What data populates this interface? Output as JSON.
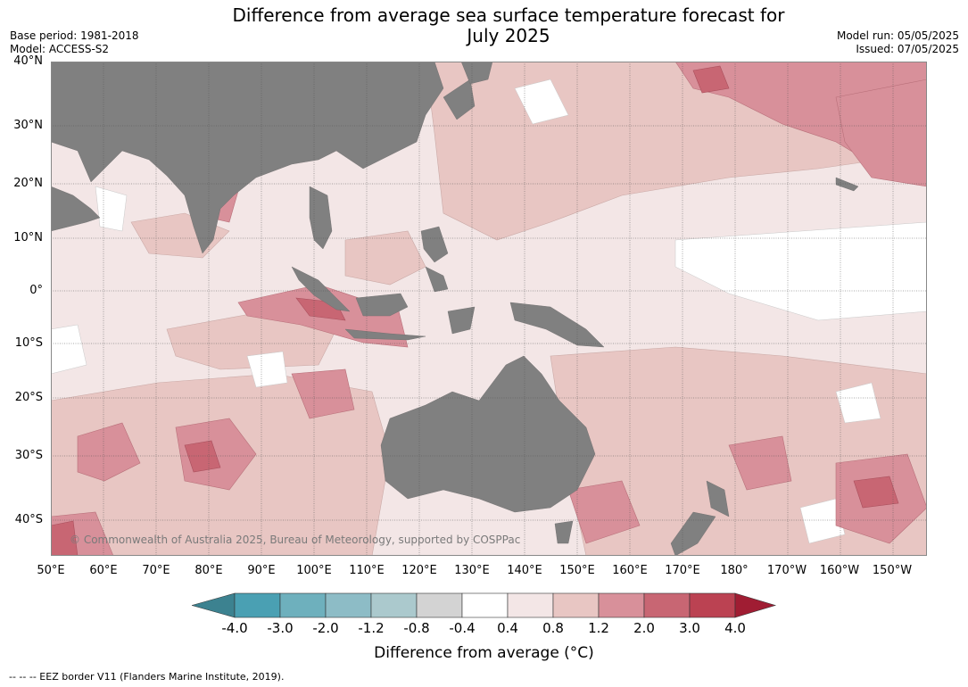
{
  "title_line1": "Difference from average sea surface temperature forecast for",
  "title_line2": "July 2025",
  "meta_left": [
    "Base period: 1981-2018",
    "Model: ACCESS-S2"
  ],
  "meta_right": [
    "Model run: 05/05/2025",
    "Issued: 07/05/2025"
  ],
  "lat_labels": [
    "40°N",
    "30°N",
    "20°N",
    "10°N",
    "0°",
    "10°S",
    "20°S",
    "30°S",
    "40°S"
  ],
  "lon_labels": [
    "50°E",
    "60°E",
    "70°E",
    "80°E",
    "90°E",
    "100°E",
    "110°E",
    "120°E",
    "130°E",
    "140°E",
    "150°E",
    "160°E",
    "170°E",
    "180°",
    "170°W",
    "160°W",
    "150°W"
  ],
  "copyright": "© Commonwealth of Australia 2025, Bureau of Meteorology, supported by COSPPac",
  "colorbar": {
    "ticks": [
      "-4.0",
      "-3.0",
      "-2.0",
      "-1.2",
      "-0.8",
      "-0.4",
      "0.4",
      "0.8",
      "1.2",
      "2.0",
      "3.0",
      "4.0"
    ],
    "colors": [
      "#4aa0b3",
      "#6eb0bd",
      "#8dbcc6",
      "#abc9cd",
      "#d3d3d3",
      "#ffffff",
      "#f3e6e6",
      "#e8c6c3",
      "#d8909a",
      "#c86673",
      "#bb4252"
    ],
    "under_color": "#3c8290",
    "over_color": "#a01d33",
    "label": "Difference from average (°C)"
  },
  "legend_note": "--  --  -- EEZ border V11 (Flanders Marine Institute, 2019).",
  "colors": {
    "land": "#808080",
    "ocean_mild": "#f3e6e6",
    "ocean_moderate": "#e8c6c3",
    "ocean_warm": "#d8909a",
    "ocean_hot": "#c86673",
    "neutral": "#ffffff"
  }
}
